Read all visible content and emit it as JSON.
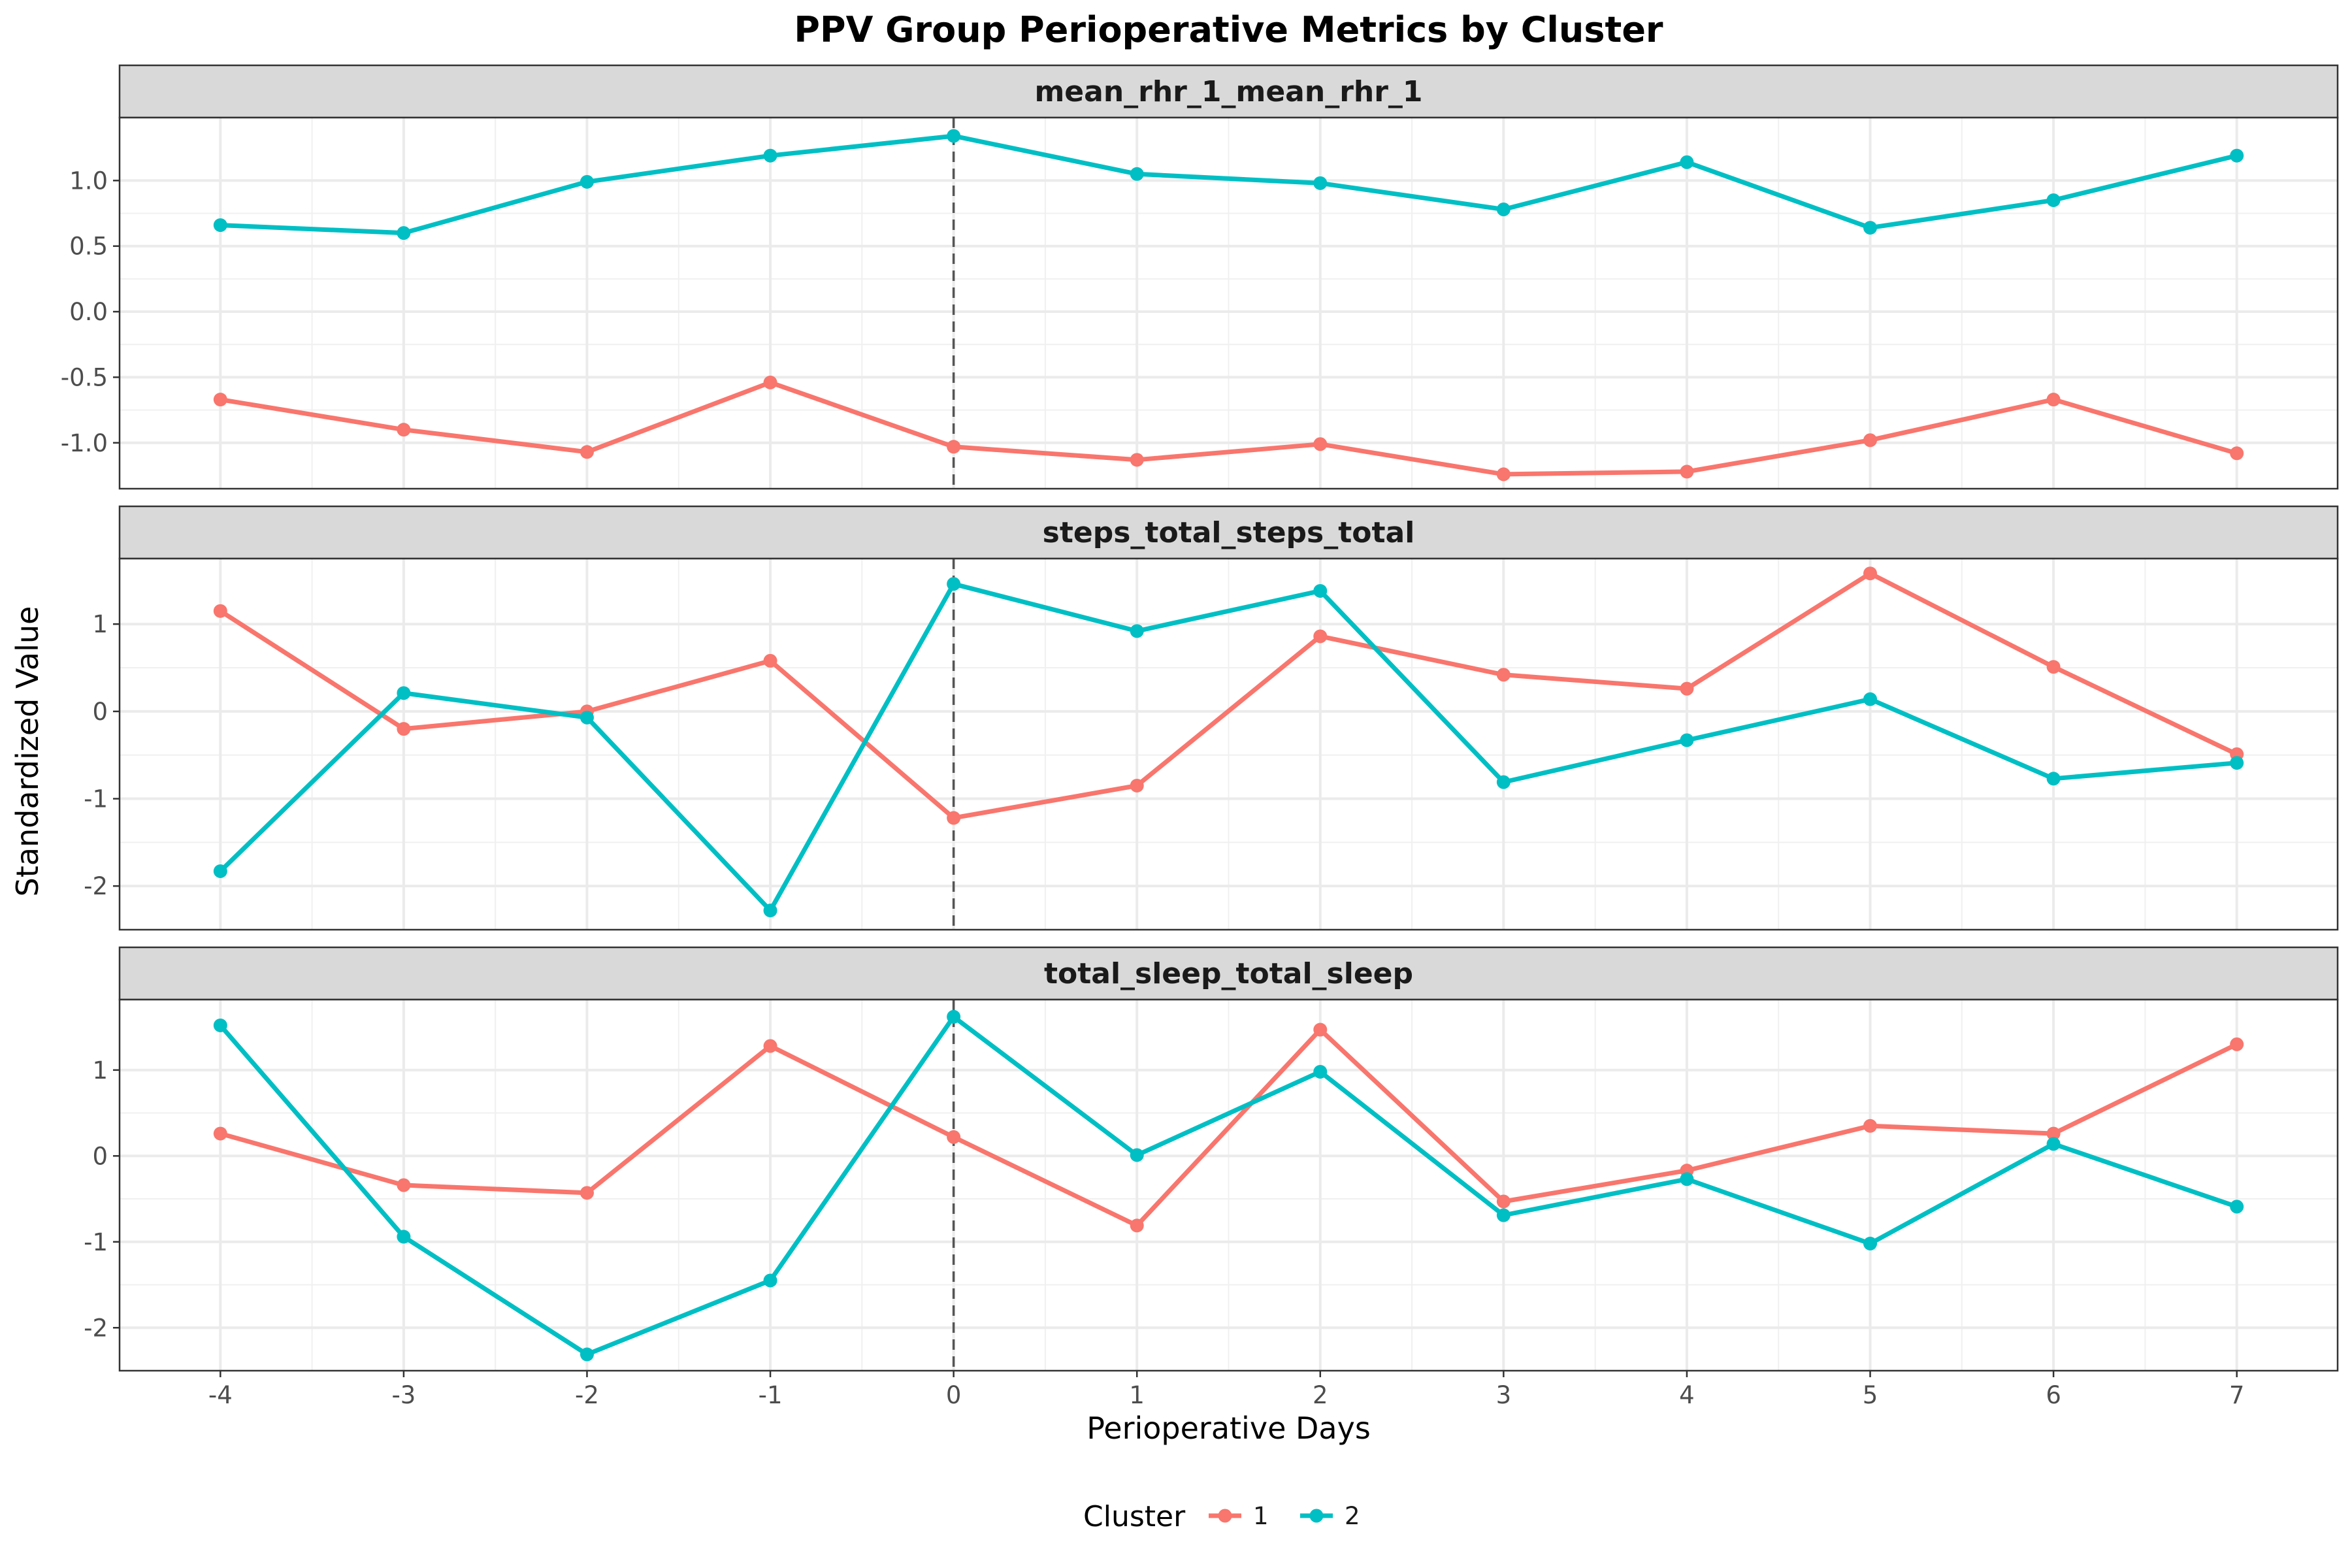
{
  "chart_data": {
    "type": "line",
    "title": "PPV Group Perioperative Metrics by Cluster",
    "xlabel": "Perioperative Days",
    "ylabel": "Standardized Value",
    "x": [
      -4,
      -3,
      -2,
      -1,
      0,
      1,
      2,
      3,
      4,
      5,
      6,
      7
    ],
    "x_ticks": [
      "-4",
      "-3",
      "-2",
      "-1",
      "0",
      "1",
      "2",
      "3",
      "4",
      "5",
      "6",
      "7"
    ],
    "xlim": [
      -4.55,
      7.55
    ],
    "vline_x": 0,
    "grid": true,
    "legend": {
      "title": "Cluster",
      "position": "bottom",
      "entries": [
        {
          "label": "1",
          "color": "#F8766D"
        },
        {
          "label": "2",
          "color": "#00BFC4"
        }
      ]
    },
    "panels": [
      {
        "strip": "mean_rhr_1_mean_rhr_1",
        "ylim": [
          -1.35,
          1.48
        ],
        "y_ticks": [
          "-1.0",
          "-0.5",
          "0.0",
          "0.5",
          "1.0"
        ],
        "y_tick_values": [
          -1.0,
          -0.5,
          0.0,
          0.5,
          1.0
        ],
        "series": [
          {
            "name": "1",
            "color": "#F8766D",
            "values": [
              -0.67,
              -0.9,
              -1.07,
              -0.54,
              -1.03,
              -1.13,
              -1.01,
              -1.24,
              -1.22,
              -0.98,
              -0.67,
              -1.08
            ]
          },
          {
            "name": "2",
            "color": "#00BFC4",
            "values": [
              0.66,
              0.6,
              0.99,
              1.19,
              1.34,
              1.05,
              0.98,
              0.78,
              1.14,
              0.64,
              0.85,
              1.19
            ]
          }
        ]
      },
      {
        "strip": "steps_total_steps_total",
        "ylim": [
          -2.5,
          1.75
        ],
        "y_ticks": [
          "-2",
          "-1",
          "0",
          "1"
        ],
        "y_tick_values": [
          -2,
          -1,
          0,
          1
        ],
        "series": [
          {
            "name": "1",
            "color": "#F8766D",
            "values": [
              1.15,
              -0.2,
              0.0,
              0.58,
              -1.22,
              -0.85,
              0.86,
              0.42,
              0.26,
              1.58,
              0.51,
              -0.49
            ]
          },
          {
            "name": "2",
            "color": "#00BFC4",
            "values": [
              -1.83,
              0.21,
              -0.07,
              -2.28,
              1.46,
              0.92,
              1.38,
              -0.81,
              -0.33,
              0.14,
              -0.77,
              -0.59
            ]
          }
        ]
      },
      {
        "strip": "total_sleep_total_sleep",
        "ylim": [
          -2.5,
          1.82
        ],
        "y_ticks": [
          "-2",
          "-1",
          "0",
          "1"
        ],
        "y_tick_values": [
          -2,
          -1,
          0,
          1
        ],
        "series": [
          {
            "name": "1",
            "color": "#F8766D",
            "values": [
              0.26,
              -0.34,
              -0.43,
              1.28,
              0.22,
              -0.81,
              1.47,
              -0.53,
              -0.17,
              0.35,
              0.26,
              1.3
            ]
          },
          {
            "name": "2",
            "color": "#00BFC4",
            "values": [
              1.52,
              -0.94,
              -2.31,
              -1.45,
              1.62,
              0.01,
              0.98,
              -0.69,
              -0.27,
              -1.02,
              0.14,
              -0.59
            ]
          }
        ]
      }
    ]
  }
}
